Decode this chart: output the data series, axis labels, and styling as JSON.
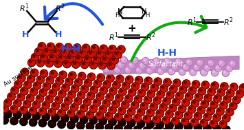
{
  "background_color": "#ffffff",
  "blue_arrow_color": "#2255dd",
  "green_arrow_color": "#11aa11",
  "hh_blue_color": "#2255ee",
  "label_au": "Au surface",
  "label_surfactant": "Surfactant",
  "label_hh1": "H-H",
  "label_hh2": "H-H",
  "au_bright": "#cc1100",
  "au_dark": "#550000",
  "au_black": "#220000",
  "surf_color": "#c080c0",
  "surf_dot_color": "#d8a0d8",
  "surf_dot_dark": "#905090",
  "figsize": [
    3.55,
    1.89
  ],
  "dpi": 100
}
